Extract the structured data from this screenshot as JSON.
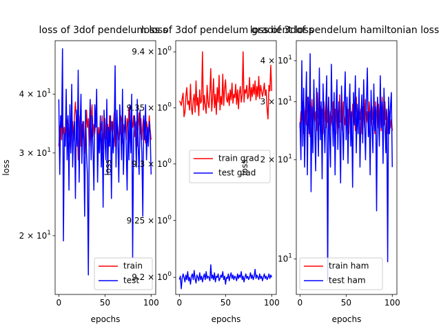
{
  "chart_data": [
    {
      "type": "line",
      "title": "loss of 3dof pendelum loss",
      "xlabel": "epochs",
      "ylabel": "loss",
      "yscale": "log",
      "xlim": [
        -4,
        105
      ],
      "ylim": [
        15,
        52
      ],
      "xticks": [
        {
          "value": 0,
          "label": "0"
        },
        {
          "value": 50,
          "label": "50"
        },
        {
          "value": 100,
          "label": "100"
        }
      ],
      "yticks": [
        {
          "value": 20,
          "label": "2 × 10^1"
        },
        {
          "value": 30,
          "label": "3 × 10^1"
        },
        {
          "value": 40,
          "label": "4 × 10^1"
        }
      ],
      "legend_position": "lower-right",
      "series": [
        {
          "name": "train",
          "color": "#ff0000",
          "values": [
            31.0,
            33.5,
            35.0,
            32.0,
            36.0,
            33.0,
            34.0,
            31.5,
            36.5,
            34.5,
            35.5,
            32.5,
            33.0,
            30.5,
            34.0,
            35.0,
            32.0,
            36.0,
            38.5,
            35.5,
            34.0,
            29.0,
            33.0,
            36.0,
            31.0,
            34.5,
            33.0,
            35.0,
            30.0,
            32.5,
            37.0,
            34.0,
            35.5,
            31.0,
            33.5,
            36.0,
            38.0,
            32.5,
            34.5,
            33.0,
            35.0,
            36.5,
            31.5,
            34.0,
            32.0,
            35.0,
            33.5,
            36.0,
            30.5,
            34.0,
            35.5,
            32.0,
            33.0,
            34.5,
            31.0,
            36.0,
            33.0,
            35.0,
            32.5,
            34.0,
            36.5,
            31.0,
            33.5,
            35.0,
            34.0,
            32.0,
            33.0,
            36.0,
            35.0,
            31.5,
            34.5,
            33.0,
            36.0,
            32.0,
            35.5,
            34.0,
            37.5,
            33.0,
            31.0,
            35.0,
            34.0,
            36.0,
            32.5,
            33.5,
            35.0,
            31.0,
            34.0,
            36.5,
            33.0,
            35.5,
            32.0,
            34.5,
            36.0,
            33.0,
            31.5,
            35.0,
            34.0,
            32.5,
            36.0,
            33.5,
            32.0
          ]
        },
        {
          "name": "test",
          "color": "#0000ff",
          "values": [
            39.0,
            27.0,
            36.0,
            34.0,
            50.0,
            19.5,
            33.0,
            31.0,
            41.0,
            29.0,
            36.0,
            25.0,
            38.0,
            30.0,
            42.0,
            28.0,
            33.0,
            35.0,
            24.0,
            37.0,
            31.0,
            45.0,
            26.0,
            34.0,
            40.0,
            28.5,
            35.0,
            32.0,
            22.0,
            37.0,
            30.0,
            27.0,
            16.5,
            33.0,
            39.0,
            29.0,
            36.0,
            31.0,
            25.0,
            38.0,
            34.0,
            41.0,
            26.0,
            33.0,
            30.0,
            36.0,
            28.0,
            35.0,
            23.0,
            37.0,
            32.0,
            29.0,
            39.0,
            27.0,
            34.0,
            31.0,
            36.0,
            24.0,
            35.0,
            30.0,
            33.0,
            46.0,
            28.0,
            37.0,
            32.0,
            26.0,
            38.0,
            34.0,
            29.0,
            41.0,
            27.0,
            33.0,
            36.0,
            31.0,
            25.0,
            35.0,
            29.0,
            38.0,
            30.0,
            40.0,
            18.0,
            32.0,
            36.0,
            34.0,
            28.0,
            39.0,
            31.0,
            27.0,
            37.0,
            33.0,
            30.0,
            22.0,
            36.0,
            32.0,
            38.0,
            29.0,
            34.0,
            31.0,
            35.0,
            33.0,
            27.0
          ]
        }
      ]
    },
    {
      "type": "line",
      "title": "loss of 3dof pendelum gradient loss",
      "xlabel": "epochs",
      "ylabel": "loss",
      "yscale": "log",
      "xlim": [
        -4,
        105
      ],
      "ylim": [
        9.185,
        9.41
      ],
      "xticks": [
        {
          "value": 0,
          "label": "0"
        },
        {
          "value": 50,
          "label": "50"
        },
        {
          "value": 100,
          "label": "100"
        }
      ],
      "yticks": [
        {
          "value": 9.2,
          "label": "9.2 × 10^0"
        },
        {
          "value": 9.25,
          "label": "9.25 × 10^0"
        },
        {
          "value": 9.3,
          "label": "9.3 × 10^0"
        },
        {
          "value": 9.35,
          "label": "9.35 × 10^0"
        },
        {
          "value": 9.4,
          "label": "9.4 × 10^0"
        }
      ],
      "legend_position": "center-right",
      "series": [
        {
          "name": "train grad",
          "color": "#ff0000",
          "values": [
            9.356,
            9.355,
            9.352,
            9.358,
            9.363,
            9.342,
            9.346,
            9.36,
            9.368,
            9.353,
            9.356,
            9.348,
            9.371,
            9.35,
            9.344,
            9.357,
            9.362,
            9.346,
            9.374,
            9.352,
            9.359,
            9.343,
            9.366,
            9.354,
            9.356,
            9.4,
            9.348,
            9.361,
            9.352,
            9.345,
            9.37,
            9.355,
            9.35,
            9.363,
            9.385,
            9.347,
            9.359,
            9.376,
            9.35,
            9.362,
            9.344,
            9.368,
            9.355,
            9.379,
            9.348,
            9.36,
            9.353,
            9.38,
            9.352,
            9.367,
            9.375,
            9.358,
            9.355,
            9.363,
            9.352,
            9.366,
            9.357,
            9.372,
            9.354,
            9.362,
            9.359,
            9.371,
            9.353,
            9.366,
            9.349,
            9.363,
            9.369,
            9.355,
            9.361,
            9.4,
            9.355,
            9.366,
            9.363,
            9.37,
            9.358,
            9.361,
            9.377,
            9.356,
            9.368,
            9.36,
            9.371,
            9.362,
            9.374,
            9.357,
            9.369,
            9.36,
            9.378,
            9.358,
            9.37,
            9.365,
            9.36,
            9.365,
            9.372,
            9.361,
            9.366,
            9.349,
            9.34,
            9.37,
            9.365,
            9.388,
            9.365
          ]
        },
        {
          "name": "test grad",
          "color": "#0000ff",
          "values": [
            9.198,
            9.201,
            9.19,
            9.199,
            9.203,
            9.2,
            9.196,
            9.202,
            9.198,
            9.205,
            9.197,
            9.2,
            9.194,
            9.201,
            9.203,
            9.198,
            9.206,
            9.199,
            9.195,
            9.202,
            9.2,
            9.197,
            9.204,
            9.198,
            9.201,
            9.196,
            9.2,
            9.203,
            9.198,
            9.205,
            9.199,
            9.201,
            9.2,
            9.197,
            9.211,
            9.199,
            9.202,
            9.198,
            9.204,
            9.196,
            9.201,
            9.2,
            9.203,
            9.197,
            9.199,
            9.202,
            9.2,
            9.205,
            9.198,
            9.201,
            9.194,
            9.2,
            9.199,
            9.203,
            9.197,
            9.201,
            9.204,
            9.199,
            9.202,
            9.198,
            9.201,
            9.2,
            9.197,
            9.203,
            9.199,
            9.202,
            9.2,
            9.205,
            9.198,
            9.201,
            9.196,
            9.2,
            9.203,
            9.199,
            9.201,
            9.198,
            9.2,
            9.204,
            9.199,
            9.202,
            9.198,
            9.201,
            9.207,
            9.199,
            9.202,
            9.2,
            9.198,
            9.203,
            9.199,
            9.201,
            9.197,
            9.2,
            9.203,
            9.199,
            9.201,
            9.198,
            9.2,
            9.203,
            9.199,
            9.202,
            9.2
          ]
        }
      ]
    },
    {
      "type": "line",
      "title": "loss of 3dof pendelum hamiltonian loss",
      "xlabel": "epochs",
      "ylabel": "loss",
      "yscale": "log",
      "xlim": [
        -4,
        105
      ],
      "ylim": [
        7.8,
        46
      ],
      "xticks": [
        {
          "value": 0,
          "label": "0"
        },
        {
          "value": 50,
          "label": "50"
        },
        {
          "value": 100,
          "label": "100"
        }
      ],
      "yticks": [
        {
          "value": 10,
          "label": "10^1"
        },
        {
          "value": 20,
          "label": "2 × 10^1"
        },
        {
          "value": 30,
          "label": "3 × 10^1"
        },
        {
          "value": 40,
          "label": "4 × 10^1"
        }
      ],
      "legend_position": "lower-right",
      "series": [
        {
          "name": "train ham",
          "color": "#ff0000",
          "values": [
            25.0,
            28.0,
            26.5,
            30.0,
            24.0,
            27.0,
            29.0,
            25.5,
            31.0,
            26.0,
            28.5,
            23.5,
            27.5,
            30.5,
            25.0,
            29.5,
            26.0,
            28.0,
            24.5,
            32.0,
            27.0,
            25.5,
            29.0,
            26.5,
            28.5,
            24.0,
            30.0,
            27.0,
            25.0,
            29.5,
            26.0,
            31.0,
            24.5,
            28.0,
            27.0,
            25.5,
            30.0,
            26.5,
            28.5,
            24.0,
            29.0,
            27.5,
            25.0,
            31.5,
            26.0,
            28.0,
            24.5,
            30.0,
            27.0,
            25.5,
            29.0,
            26.5,
            28.5,
            24.0,
            30.5,
            27.0,
            25.0,
            29.5,
            26.0,
            28.0,
            24.5,
            31.0,
            27.0,
            25.5,
            30.0,
            26.5,
            28.5,
            24.0,
            29.0,
            27.5,
            25.0,
            30.5,
            26.0,
            28.0,
            24.5,
            30.0,
            27.0,
            25.5,
            29.0,
            26.5,
            28.5,
            24.0,
            30.0,
            27.5,
            25.0,
            29.5,
            26.0,
            28.0,
            24.5,
            31.0,
            27.0,
            25.5,
            30.0,
            26.5,
            28.5,
            24.0,
            29.0,
            27.5,
            25.0,
            26.5,
            24.5
          ]
        },
        {
          "name": "test ham",
          "color": "#0000ff",
          "values": [
            26.0,
            20.0,
            40.0,
            22.0,
            33.0,
            19.0,
            28.0,
            37.0,
            18.0,
            31.0,
            24.0,
            42.0,
            16.0,
            29.0,
            21.0,
            35.0,
            25.0,
            18.5,
            33.0,
            27.0,
            20.5,
            38.0,
            23.0,
            30.0,
            17.5,
            34.0,
            26.5,
            21.0,
            29.0,
            36.0,
            8.6,
            31.0,
            24.0,
            19.0,
            39.0,
            27.0,
            22.0,
            32.0,
            18.0,
            28.5,
            35.0,
            21.5,
            30.0,
            25.0,
            17.0,
            33.5,
            26.0,
            20.0,
            29.0,
            37.0,
            23.0,
            31.0,
            19.5,
            27.5,
            34.0,
            22.0,
            28.0,
            16.5,
            32.0,
            25.5,
            36.0,
            21.0,
            29.5,
            24.0,
            33.0,
            19.0,
            27.0,
            31.5,
            22.5,
            35.0,
            26.0,
            20.0,
            30.0,
            38.0,
            23.5,
            28.0,
            18.0,
            32.5,
            26.0,
            21.0,
            34.0,
            24.5,
            29.0,
            14.0,
            31.0,
            27.0,
            22.0,
            36.0,
            25.0,
            30.0,
            19.5,
            33.0,
            26.5,
            21.0,
            28.5,
            9.8,
            31.0,
            24.0,
            29.0,
            32.0,
            19.0
          ]
        }
      ]
    }
  ]
}
